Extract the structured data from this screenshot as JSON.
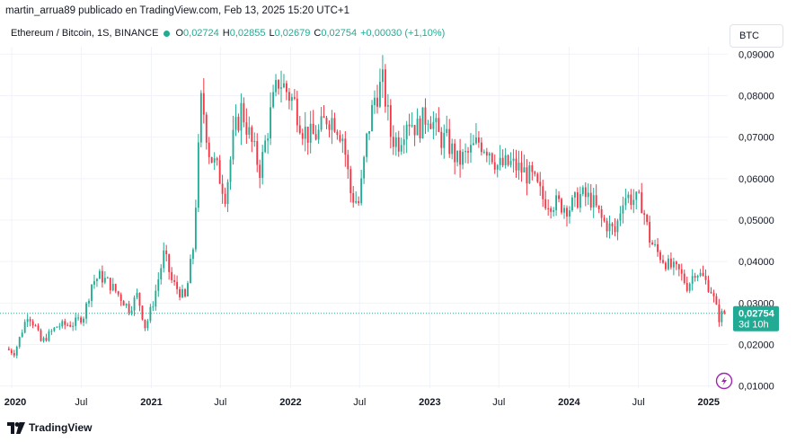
{
  "header": {
    "attribution": "martin_arrua89 publicado en TradingView.com, Feb 13, 2025 15:20 UTC+1"
  },
  "legend": {
    "symbol": "Ethereum / Bitcoin, 1S, BINANCE",
    "open_label": "O",
    "open": "0,02724",
    "high_label": "H",
    "high": "0,02855",
    "low_label": "L",
    "low": "0,02679",
    "close_label": "C",
    "close": "0,02754",
    "change": "+0,00030 (+1,10%)"
  },
  "currency_button": "BTC",
  "price_tag": {
    "value": "0,02754",
    "countdown": "3d 10h"
  },
  "logo": {
    "text": "TradingView",
    "icon": "tradingview-logo-icon"
  },
  "flash_icon": "lightning-icon",
  "colors": {
    "up": "#22ab94",
    "down": "#f23645",
    "grid": "#f0f3fa",
    "last_line": "#22ab94"
  },
  "chart_data": {
    "type": "candlestick",
    "title": "",
    "xlabel": "",
    "ylabel": "",
    "ylim": [
      0.0095,
      0.0905
    ],
    "xlim": [
      "2019-12-20",
      "2025-02-20"
    ],
    "grid": true,
    "y_ticks": [
      "0,01000",
      "0,02000",
      "0,03000",
      "0,04000",
      "0,05000",
      "0,06000",
      "0,07000",
      "0,08000",
      "0,09000"
    ],
    "y_tick_values": [
      0.01,
      0.02,
      0.03,
      0.04,
      0.05,
      0.06,
      0.07,
      0.08,
      0.09
    ],
    "x_ticks": [
      {
        "label": "2020",
        "date": "2020-01-01",
        "bold": true
      },
      {
        "label": "Jul",
        "date": "2020-07-01",
        "bold": false
      },
      {
        "label": "2021",
        "date": "2021-01-01",
        "bold": true
      },
      {
        "label": "Jul",
        "date": "2021-07-01",
        "bold": false
      },
      {
        "label": "2022",
        "date": "2022-01-01",
        "bold": true
      },
      {
        "label": "Jul",
        "date": "2022-07-01",
        "bold": false
      },
      {
        "label": "2023",
        "date": "2023-01-01",
        "bold": true
      },
      {
        "label": "Jul",
        "date": "2023-07-01",
        "bold": false
      },
      {
        "label": "2024",
        "date": "2024-01-01",
        "bold": true
      },
      {
        "label": "Jul",
        "date": "2024-07-01",
        "bold": false
      },
      {
        "label": "2025",
        "date": "2025-01-01",
        "bold": true
      }
    ],
    "last_close": 0.02754,
    "path_points": [
      [
        "2019-12-22",
        0.019
      ],
      [
        "2020-01-13",
        0.018
      ],
      [
        "2020-02-17",
        0.0275
      ],
      [
        "2020-03-09",
        0.024
      ],
      [
        "2020-03-23",
        0.0205
      ],
      [
        "2020-05-04",
        0.0245
      ],
      [
        "2020-06-15",
        0.025
      ],
      [
        "2020-07-13",
        0.027
      ],
      [
        "2020-08-03",
        0.035
      ],
      [
        "2020-08-24",
        0.0365
      ],
      [
        "2020-09-14",
        0.035
      ],
      [
        "2020-10-12",
        0.032
      ],
      [
        "2020-11-09",
        0.0285
      ],
      [
        "2020-11-30",
        0.032
      ],
      [
        "2020-12-21",
        0.024
      ],
      [
        "2021-01-11",
        0.0305
      ],
      [
        "2021-02-08",
        0.042
      ],
      [
        "2021-03-01",
        0.035
      ],
      [
        "2021-04-05",
        0.031
      ],
      [
        "2021-04-26",
        0.044
      ],
      [
        "2021-05-17",
        0.08
      ],
      [
        "2021-06-07",
        0.066
      ],
      [
        "2021-06-28",
        0.062
      ],
      [
        "2021-07-19",
        0.056
      ],
      [
        "2021-08-09",
        0.07
      ],
      [
        "2021-08-30",
        0.077
      ],
      [
        "2021-09-27",
        0.068
      ],
      [
        "2021-10-18",
        0.062
      ],
      [
        "2021-11-15",
        0.076
      ],
      [
        "2021-12-06",
        0.084
      ],
      [
        "2021-12-27",
        0.081
      ],
      [
        "2022-01-17",
        0.078
      ],
      [
        "2022-02-07",
        0.072
      ],
      [
        "2022-02-28",
        0.07
      ],
      [
        "2022-03-21",
        0.071
      ],
      [
        "2022-04-11",
        0.075
      ],
      [
        "2022-05-02",
        0.074
      ],
      [
        "2022-05-23",
        0.07
      ],
      [
        "2022-06-13",
        0.056
      ],
      [
        "2022-07-04",
        0.054
      ],
      [
        "2022-07-25",
        0.07
      ],
      [
        "2022-08-15",
        0.08
      ],
      [
        "2022-09-05",
        0.083
      ],
      [
        "2022-09-26",
        0.07
      ],
      [
        "2022-10-17",
        0.069
      ],
      [
        "2022-11-07",
        0.075
      ],
      [
        "2022-12-05",
        0.072
      ],
      [
        "2023-01-02",
        0.076
      ],
      [
        "2023-01-30",
        0.07
      ],
      [
        "2023-02-20",
        0.069
      ],
      [
        "2023-03-20",
        0.064
      ],
      [
        "2023-04-17",
        0.066
      ],
      [
        "2023-05-15",
        0.069
      ],
      [
        "2023-06-12",
        0.067
      ],
      [
        "2023-07-03",
        0.063
      ],
      [
        "2023-08-07",
        0.0635
      ],
      [
        "2023-09-04",
        0.062
      ],
      [
        "2023-10-02",
        0.06
      ],
      [
        "2023-10-30",
        0.055
      ],
      [
        "2023-12-04",
        0.054
      ],
      [
        "2024-01-08",
        0.053
      ],
      [
        "2024-02-05",
        0.056
      ],
      [
        "2024-03-04",
        0.055
      ],
      [
        "2024-04-01",
        0.05
      ],
      [
        "2024-05-06",
        0.047
      ],
      [
        "2024-05-27",
        0.056
      ],
      [
        "2024-06-24",
        0.055
      ],
      [
        "2024-07-15",
        0.054
      ],
      [
        "2024-08-05",
        0.045
      ],
      [
        "2024-08-26",
        0.042
      ],
      [
        "2024-09-23",
        0.039
      ],
      [
        "2024-10-21",
        0.0375
      ],
      [
        "2024-11-11",
        0.034
      ],
      [
        "2024-12-02",
        0.038
      ],
      [
        "2024-12-23",
        0.036
      ],
      [
        "2025-01-13",
        0.033
      ],
      [
        "2025-02-03",
        0.026
      ],
      [
        "2025-02-10",
        0.02754
      ]
    ]
  }
}
